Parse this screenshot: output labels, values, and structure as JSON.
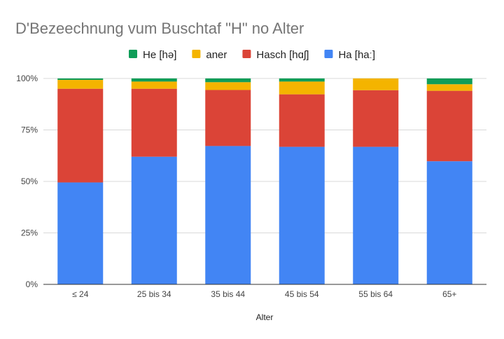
{
  "chart_data": {
    "type": "bar",
    "stacked": true,
    "normalized": true,
    "title": "D'Bezeechnung vum Buschtaf \"H\" no Alter",
    "xlabel": "Alter",
    "ylabel": "",
    "categories": [
      "≤ 24",
      "25 bis 34",
      "35 bis 44",
      "45 bis 54",
      "55 bis 64",
      "65+"
    ],
    "yticks": [
      "0%",
      "25%",
      "50%",
      "75%",
      "100%"
    ],
    "ylim": [
      0,
      1
    ],
    "grid": true,
    "legend_position": "top",
    "legend_order": [
      "He [hə]",
      "aner",
      "Hasch [hɑʃ]",
      "Ha [haː]"
    ],
    "series": [
      {
        "name": "Ha [haː]",
        "color": "#4285F4",
        "values": [
          0.495,
          0.62,
          0.672,
          0.668,
          0.668,
          0.598
        ]
      },
      {
        "name": "Hasch [hɑʃ]",
        "color": "#DB4437",
        "values": [
          0.455,
          0.33,
          0.272,
          0.255,
          0.275,
          0.342
        ]
      },
      {
        "name": "aner",
        "color": "#F4B400",
        "values": [
          0.043,
          0.035,
          0.038,
          0.062,
          0.057,
          0.032
        ]
      },
      {
        "name": "He [hə]",
        "color": "#0F9D58",
        "values": [
          0.007,
          0.015,
          0.018,
          0.015,
          0.0,
          0.028
        ]
      }
    ]
  }
}
